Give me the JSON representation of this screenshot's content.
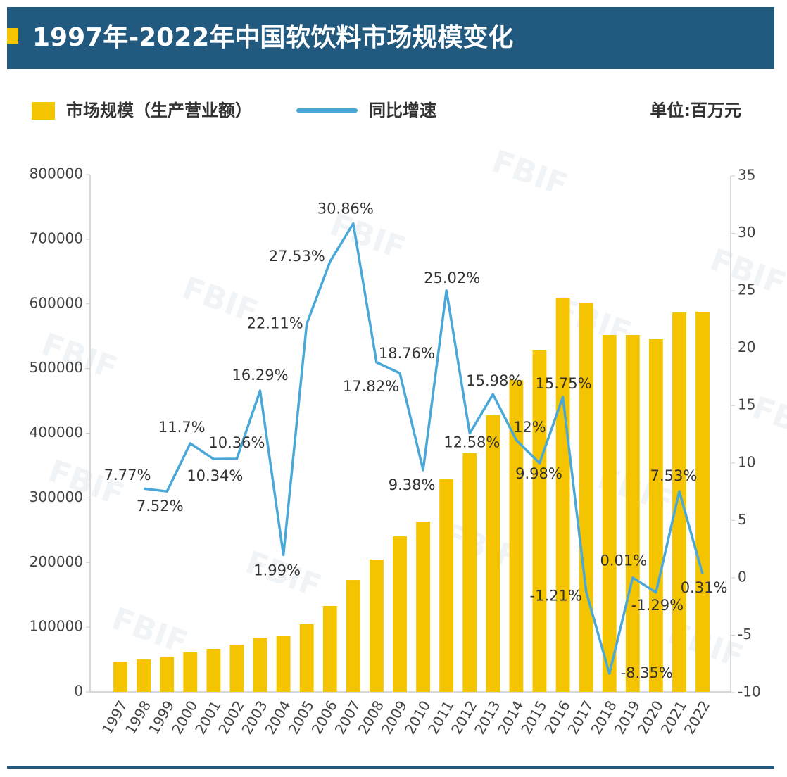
{
  "chart_data": {
    "type": "bar_line",
    "title": "1997年-2022年中国软饮料市场规模变化",
    "unit_label": "单位:百万元",
    "watermark": "FBIF",
    "categories": [
      "1997",
      "1998",
      "1999",
      "2000",
      "2001",
      "2002",
      "2003",
      "2004",
      "2005",
      "2006",
      "2007",
      "2008",
      "2009",
      "2010",
      "2011",
      "2012",
      "2013",
      "2014",
      "2015",
      "2016",
      "2017",
      "2018",
      "2019",
      "2020",
      "2021",
      "2022"
    ],
    "series": [
      {
        "name": "市场规模（生产营业额）",
        "type": "bar",
        "color": "#f5c400",
        "values": [
          46800,
          50000,
          54400,
          61000,
          66400,
          72900,
          83800,
          86000,
          104500,
          132800,
          173000,
          204600,
          240500,
          263400,
          328700,
          369000,
          427800,
          482000,
          527900,
          609500,
          601900,
          551800,
          551800,
          545300,
          586600,
          587800
        ]
      },
      {
        "name": "同比增速",
        "type": "line",
        "color": "#4aa8d8",
        "axis": "y2",
        "values": [
          null,
          7.77,
          7.52,
          11.7,
          10.34,
          10.36,
          16.29,
          1.99,
          22.11,
          27.53,
          30.86,
          18.76,
          17.82,
          9.38,
          25.02,
          12.58,
          15.98,
          12,
          9.98,
          15.75,
          -1.21,
          -8.35,
          0.01,
          -1.29,
          7.53,
          0.31
        ],
        "value_labels": [
          null,
          "7.77%",
          "7.52%",
          "11.7%",
          "10.34%",
          "10.36%",
          "16.29%",
          "1.99%",
          "22.11%",
          "27.53%",
          "30.86%",
          "18.76%",
          "17.82%",
          "9.38%",
          "25.02%",
          "12.58%",
          "15.98%",
          "12%",
          "9.98%",
          "15.75%",
          "-1.21%",
          "-8.35%",
          "0.01%",
          "-1.29%",
          "7.53%",
          "0.31%"
        ]
      }
    ],
    "ylim": [
      0,
      800000
    ],
    "yticks": [
      0,
      100000,
      200000,
      300000,
      400000,
      500000,
      600000,
      700000,
      800000
    ],
    "y2lim": [
      -10,
      35
    ],
    "y2ticks": [
      -10,
      -5,
      0,
      5,
      10,
      15,
      20,
      25,
      30,
      35
    ]
  }
}
